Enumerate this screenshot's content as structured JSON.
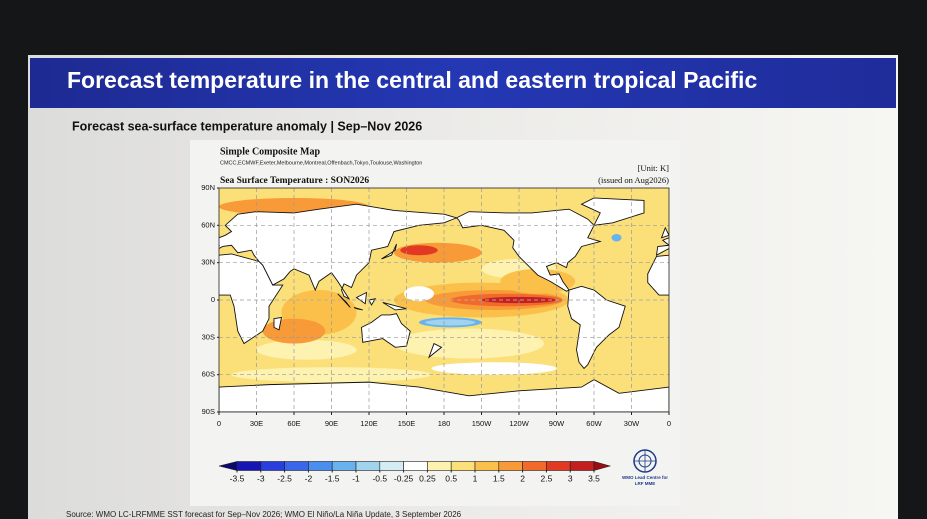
{
  "slide": {
    "title": "Forecast temperature in the central and eastern tropical Pacific",
    "subtitle": "Forecast sea-surface temperature anomaly | Sep–Nov 2026",
    "source": "Source: WMO LC-LRFMME SST forecast for Sep–Nov 2026; WMO El Niño/La Niña Update, 3 September 2026"
  },
  "figure": {
    "heading": "Simple Composite Map",
    "models": "CMCC,ECMWF,Exeter,Melbourne,Montreal,Offenbach,Tokyo,Toulouse,Washington",
    "unit": "[Unit: K]",
    "issued": "(issued on Aug2026)",
    "map_title": "Sea Surface Temperature : SON2026",
    "lat_labels": [
      "90N",
      "60N",
      "30N",
      "0",
      "30S",
      "60S",
      "90S"
    ],
    "lon_labels": [
      "0",
      "30E",
      "60E",
      "90E",
      "120E",
      "150E",
      "180",
      "150W",
      "120W",
      "90W",
      "60W",
      "30W",
      "0"
    ],
    "colorbar": {
      "ticks": [
        -3.5,
        -3,
        -2.5,
        -2,
        -1.5,
        -1,
        -0.5,
        -0.25,
        0.25,
        0.5,
        1,
        1.5,
        2,
        2.5,
        3,
        3.5
      ],
      "colors": [
        "#0a0a6e",
        "#1616b4",
        "#2a3ee0",
        "#3a66ea",
        "#4a8ef0",
        "#68b2ee",
        "#9fd3ee",
        "#d4ecf4",
        "#ffffff",
        "#fdf2b0",
        "#fbe07a",
        "#fbc04a",
        "#f89a38",
        "#f26a2a",
        "#e23a22",
        "#c41e1e",
        "#9a0e12"
      ]
    },
    "logo_text": [
      "WMO Lead Centre for",
      "LRF MME"
    ]
  }
}
